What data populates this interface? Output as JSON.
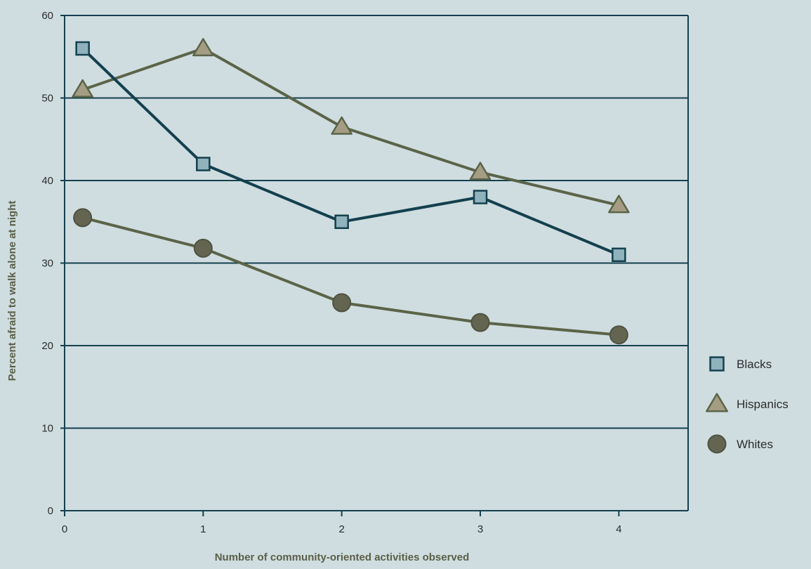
{
  "chart_data": {
    "type": "line",
    "title": "",
    "xlabel": "Number of community-oriented activities observed",
    "ylabel": "Percent afraid to walk alone at night",
    "xlim": [
      0,
      4.5
    ],
    "ylim": [
      0,
      60
    ],
    "x_ticks": [
      0,
      1,
      2,
      3,
      4
    ],
    "y_ticks": [
      0,
      10,
      20,
      30,
      40,
      50,
      60
    ],
    "grid": "horizontal",
    "legend_position": "right",
    "series": [
      {
        "name": "Blacks",
        "marker": "square",
        "line_color": "#14404e",
        "marker_color": "#8fb2bc",
        "x": [
          0.13,
          1,
          2,
          3,
          4
        ],
        "y": [
          56,
          42,
          35,
          38,
          31
        ]
      },
      {
        "name": "Hispanics",
        "marker": "triangle",
        "line_color": "#5b6448",
        "marker_color": "#a49d84",
        "x": [
          0.13,
          1,
          2,
          3,
          4
        ],
        "y": [
          51,
          56,
          46.5,
          41,
          37
        ]
      },
      {
        "name": "Whites",
        "marker": "circle",
        "line_color": "#5b6448",
        "marker_color": "#636550",
        "x": [
          0.13,
          1,
          2,
          3,
          4
        ],
        "y": [
          35.5,
          31.8,
          25.2,
          22.8,
          21.3
        ]
      }
    ]
  }
}
